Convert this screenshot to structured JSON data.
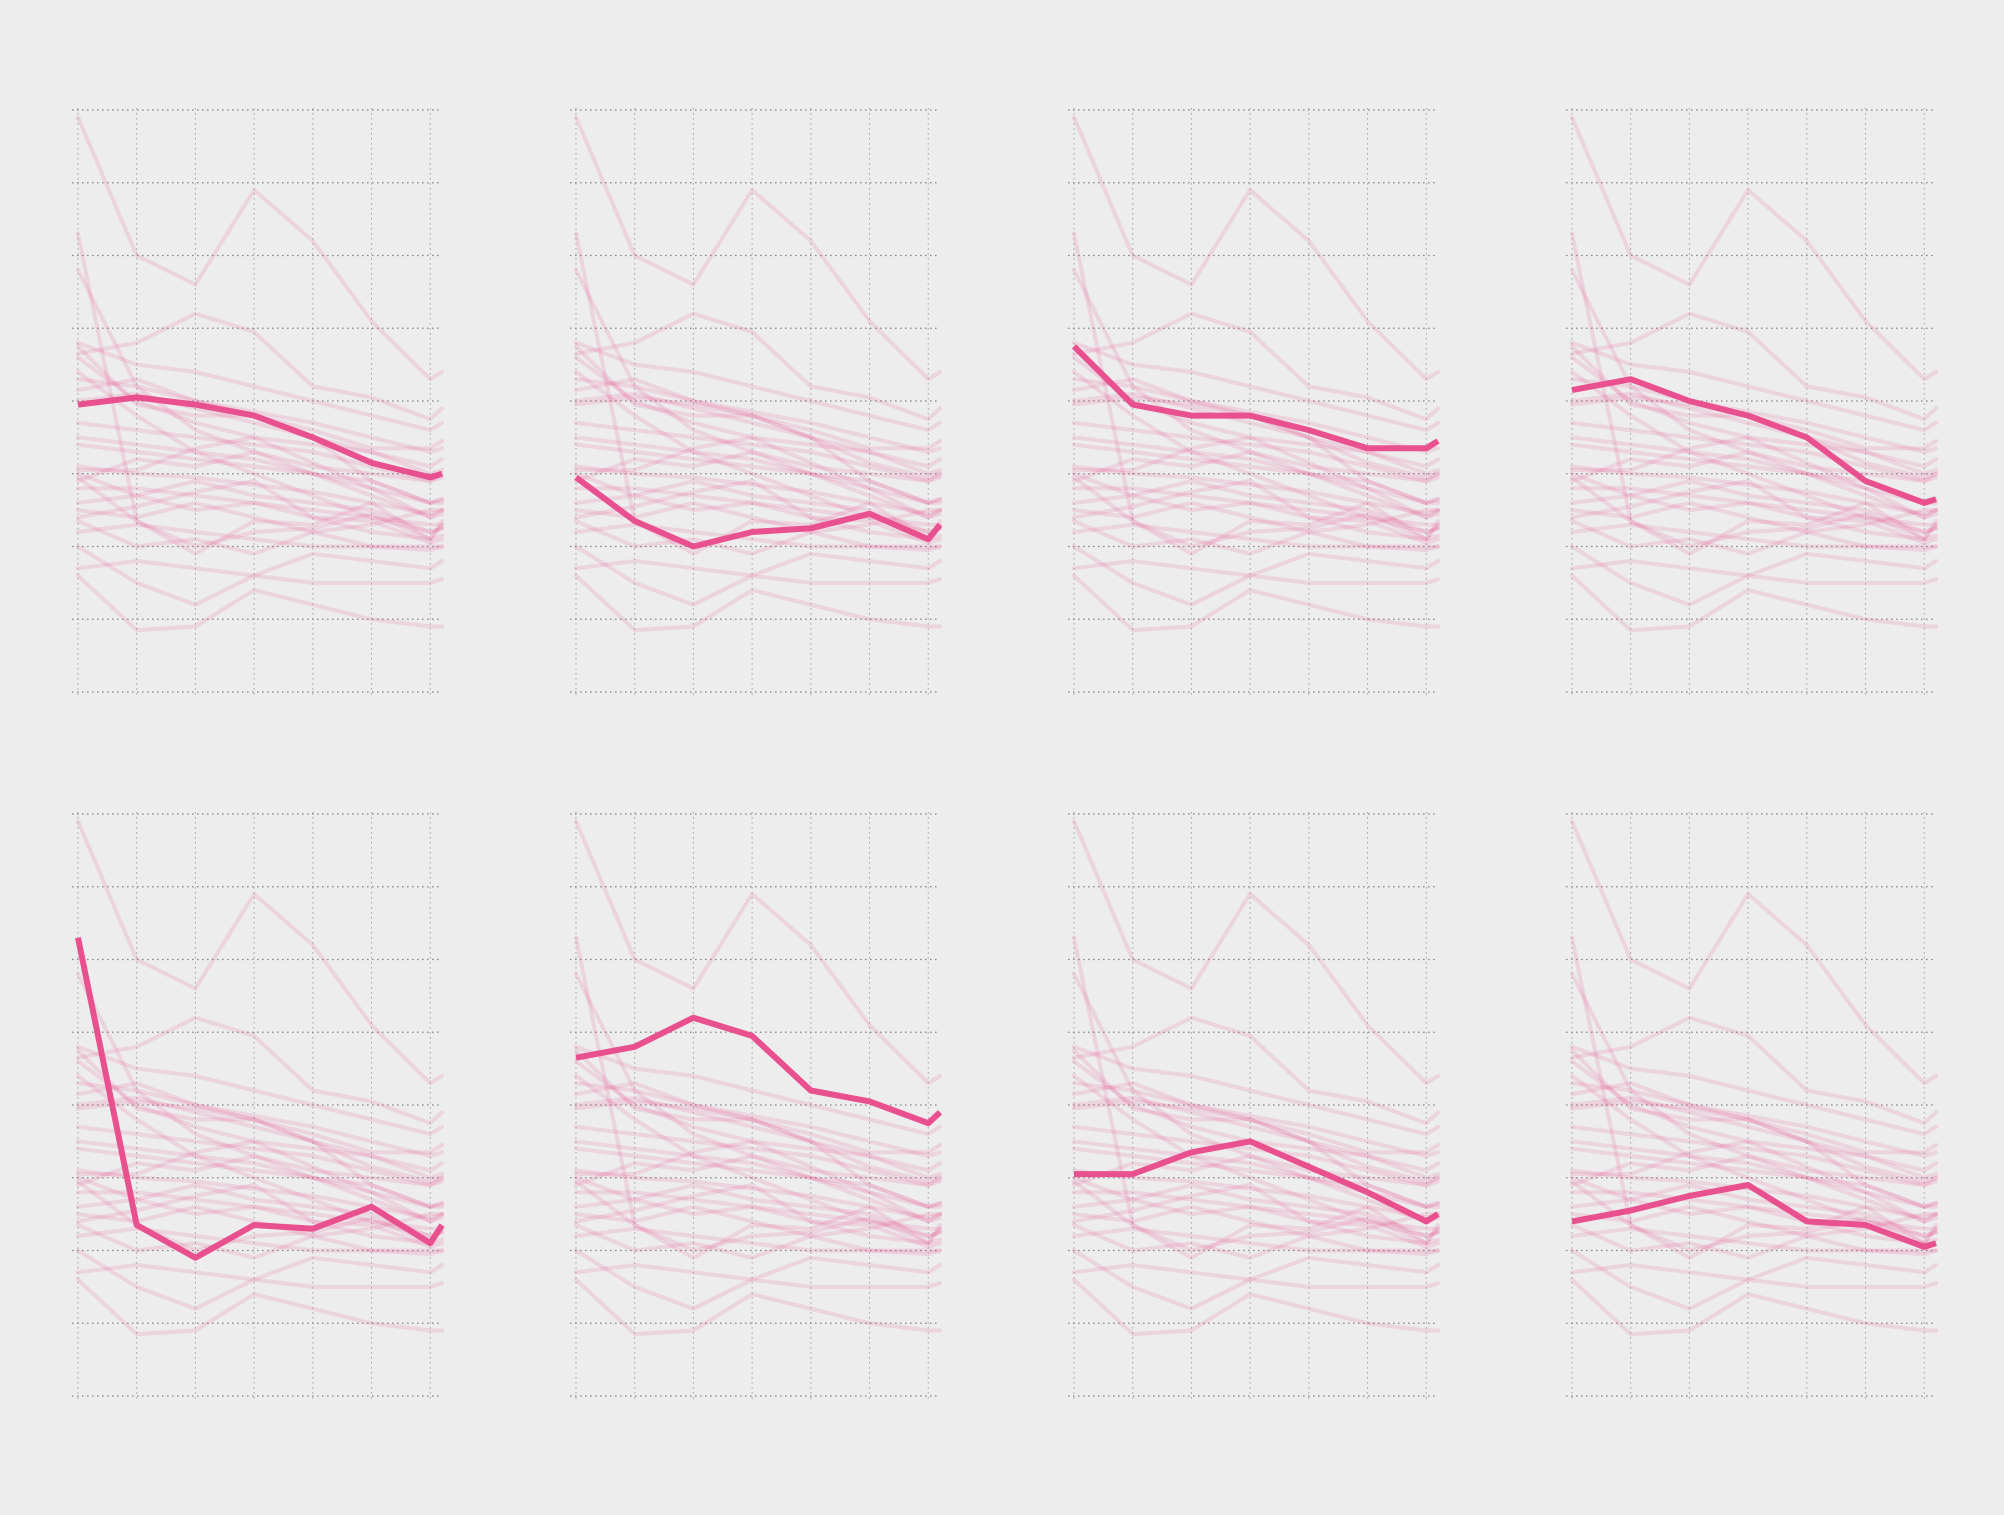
{
  "chart_data": {
    "type": "line",
    "layout": "small-multiples",
    "rows": 2,
    "cols": 4,
    "x": [
      0,
      1,
      2,
      3,
      4,
      5,
      6,
      6.2
    ],
    "xlim": [
      0,
      6.2
    ],
    "ylim": [
      0,
      8
    ],
    "grid": true,
    "highlight_color": "#e8508f",
    "background_color": "#ededed",
    "grid_color": "#6f6f6f",
    "series": [
      {
        "values": [
          3.95,
          4.05,
          3.95,
          3.8,
          3.5,
          3.15,
          2.95,
          3.0
        ]
      },
      {
        "values": [
          2.95,
          2.35,
          2.0,
          2.2,
          2.25,
          2.45,
          2.1,
          2.3
        ]
      },
      {
        "values": [
          4.75,
          3.95,
          3.8,
          3.8,
          3.6,
          3.35,
          3.35,
          3.45
        ]
      },
      {
        "values": [
          4.15,
          4.3,
          4.0,
          3.8,
          3.5,
          2.9,
          2.6,
          2.65
        ]
      },
      {
        "values": [
          6.3,
          2.35,
          1.9,
          2.35,
          2.3,
          2.6,
          2.1,
          2.35
        ]
      },
      {
        "values": [
          4.65,
          4.8,
          5.2,
          4.95,
          4.2,
          4.05,
          3.75,
          3.9
        ]
      },
      {
        "values": [
          3.05,
          3.05,
          3.35,
          3.5,
          3.15,
          2.8,
          2.4,
          2.5
        ]
      },
      {
        "values": [
          2.4,
          2.55,
          2.75,
          2.9,
          2.4,
          2.35,
          2.05,
          2.1
        ]
      },
      {
        "values": [
          7.9,
          6.0,
          5.6,
          6.9,
          6.2,
          5.1,
          4.3,
          4.4
        ]
      },
      {
        "values": [
          5.8,
          4.2,
          3.6,
          3.3,
          3.1,
          3.0,
          2.9,
          3.0
        ]
      },
      {
        "values": [
          4.8,
          4.5,
          4.4,
          4.2,
          4.0,
          3.8,
          3.6,
          3.7
        ]
      },
      {
        "values": [
          4.6,
          4.0,
          3.7,
          3.5,
          3.4,
          3.3,
          3.1,
          3.2
        ]
      },
      {
        "values": [
          4.3,
          4.2,
          4.0,
          3.85,
          3.7,
          3.5,
          3.3,
          3.35
        ]
      },
      {
        "values": [
          4.0,
          4.1,
          3.9,
          3.7,
          3.5,
          3.3,
          3.0,
          3.05
        ]
      },
      {
        "values": [
          3.7,
          3.6,
          3.5,
          3.4,
          3.3,
          3.1,
          2.9,
          2.95
        ]
      },
      {
        "values": [
          3.4,
          3.3,
          3.2,
          3.1,
          3.0,
          2.8,
          2.6,
          2.65
        ]
      },
      {
        "values": [
          3.1,
          3.0,
          2.95,
          2.85,
          2.75,
          2.6,
          2.45,
          2.5
        ]
      },
      {
        "values": [
          2.8,
          2.8,
          2.7,
          2.6,
          2.5,
          2.4,
          2.3,
          2.3
        ]
      },
      {
        "values": [
          3.0,
          2.7,
          2.9,
          2.7,
          2.6,
          2.5,
          2.2,
          2.25
        ]
      },
      {
        "values": [
          2.6,
          2.7,
          2.5,
          2.6,
          2.4,
          2.2,
          2.1,
          2.15
        ]
      },
      {
        "values": [
          2.5,
          2.4,
          2.6,
          2.4,
          2.2,
          2.0,
          1.95,
          2.0
        ]
      },
      {
        "values": [
          2.2,
          2.3,
          2.2,
          2.1,
          2.0,
          2.0,
          2.0,
          2.0
        ]
      },
      {
        "values": [
          2.0,
          1.5,
          1.2,
          1.6,
          1.9,
          1.8,
          1.7,
          1.8
        ]
      },
      {
        "values": [
          1.7,
          1.8,
          1.7,
          1.6,
          1.5,
          1.5,
          1.5,
          1.55
        ]
      },
      {
        "values": [
          1.6,
          0.85,
          0.9,
          1.4,
          1.2,
          1.0,
          0.9,
          0.9
        ]
      },
      {
        "values": [
          4.4,
          3.8,
          3.3,
          3.0,
          2.7,
          2.4,
          2.2,
          2.25
        ]
      },
      {
        "values": [
          2.9,
          3.2,
          3.1,
          3.3,
          3.0,
          2.9,
          2.6,
          2.6
        ]
      },
      {
        "values": [
          2.35,
          2.0,
          2.1,
          1.9,
          2.2,
          2.3,
          2.5,
          2.5
        ]
      },
      {
        "values": [
          3.5,
          3.4,
          3.3,
          3.2,
          3.0,
          2.7,
          2.4,
          2.45
        ]
      }
    ],
    "panels": [
      {
        "highlight": 0
      },
      {
        "highlight": 1
      },
      {
        "highlight": 2
      },
      {
        "highlight": 3
      },
      {
        "highlight": 4
      },
      {
        "highlight": 5
      },
      {
        "highlight": 6
      },
      {
        "highlight": 7
      }
    ]
  }
}
